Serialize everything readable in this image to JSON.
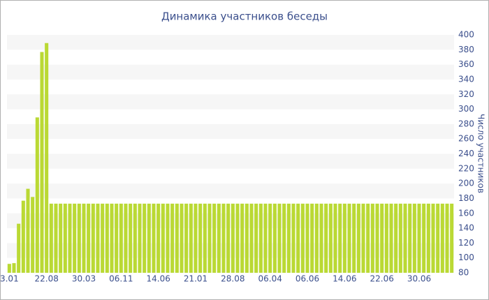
{
  "chart_data": {
    "type": "bar",
    "title": "Динамика участников беседы",
    "y_label": "Число участников",
    "categories": [
      "3.01",
      null,
      null,
      null,
      null,
      null,
      null,
      null,
      "22.08",
      null,
      null,
      null,
      null,
      null,
      null,
      null,
      "30.03",
      null,
      null,
      null,
      null,
      null,
      null,
      null,
      "06.11",
      null,
      null,
      null,
      null,
      null,
      null,
      null,
      "14.06",
      null,
      null,
      null,
      null,
      null,
      null,
      null,
      "21.01",
      null,
      null,
      null,
      null,
      null,
      null,
      null,
      "28.08",
      null,
      null,
      null,
      null,
      null,
      null,
      null,
      "06.04",
      null,
      null,
      null,
      null,
      null,
      null,
      null,
      "06.06",
      null,
      null,
      null,
      null,
      null,
      null,
      null,
      "14.06",
      null,
      null,
      null,
      null,
      null,
      null,
      null,
      "22.06",
      null,
      null,
      null,
      null,
      null,
      null,
      null,
      "30.06",
      null,
      null,
      null,
      null,
      null,
      null,
      null
    ],
    "values": [
      92,
      93,
      146,
      177,
      193,
      182,
      289,
      377,
      389,
      173,
      173,
      173,
      173,
      173,
      173,
      173,
      173,
      173,
      173,
      173,
      173,
      173,
      173,
      173,
      173,
      173,
      173,
      173,
      173,
      173,
      173,
      173,
      173,
      173,
      173,
      173,
      173,
      173,
      173,
      173,
      173,
      173,
      173,
      173,
      173,
      173,
      173,
      173,
      173,
      173,
      173,
      173,
      173,
      173,
      173,
      173,
      173,
      173,
      173,
      173,
      173,
      173,
      173,
      173,
      173,
      173,
      173,
      173,
      173,
      173,
      173,
      173,
      173,
      173,
      173,
      173,
      173,
      173,
      173,
      173,
      173,
      173,
      173,
      173,
      173,
      173,
      173,
      173,
      173,
      173,
      173,
      173,
      173,
      173,
      173,
      173
    ],
    "color": "#bad934",
    "ylim": [
      80,
      400
    ],
    "yticks": [
      80,
      100,
      120,
      140,
      160,
      180,
      200,
      220,
      240,
      260,
      280,
      300,
      320,
      340,
      360,
      380,
      400
    ],
    "grid": true
  }
}
